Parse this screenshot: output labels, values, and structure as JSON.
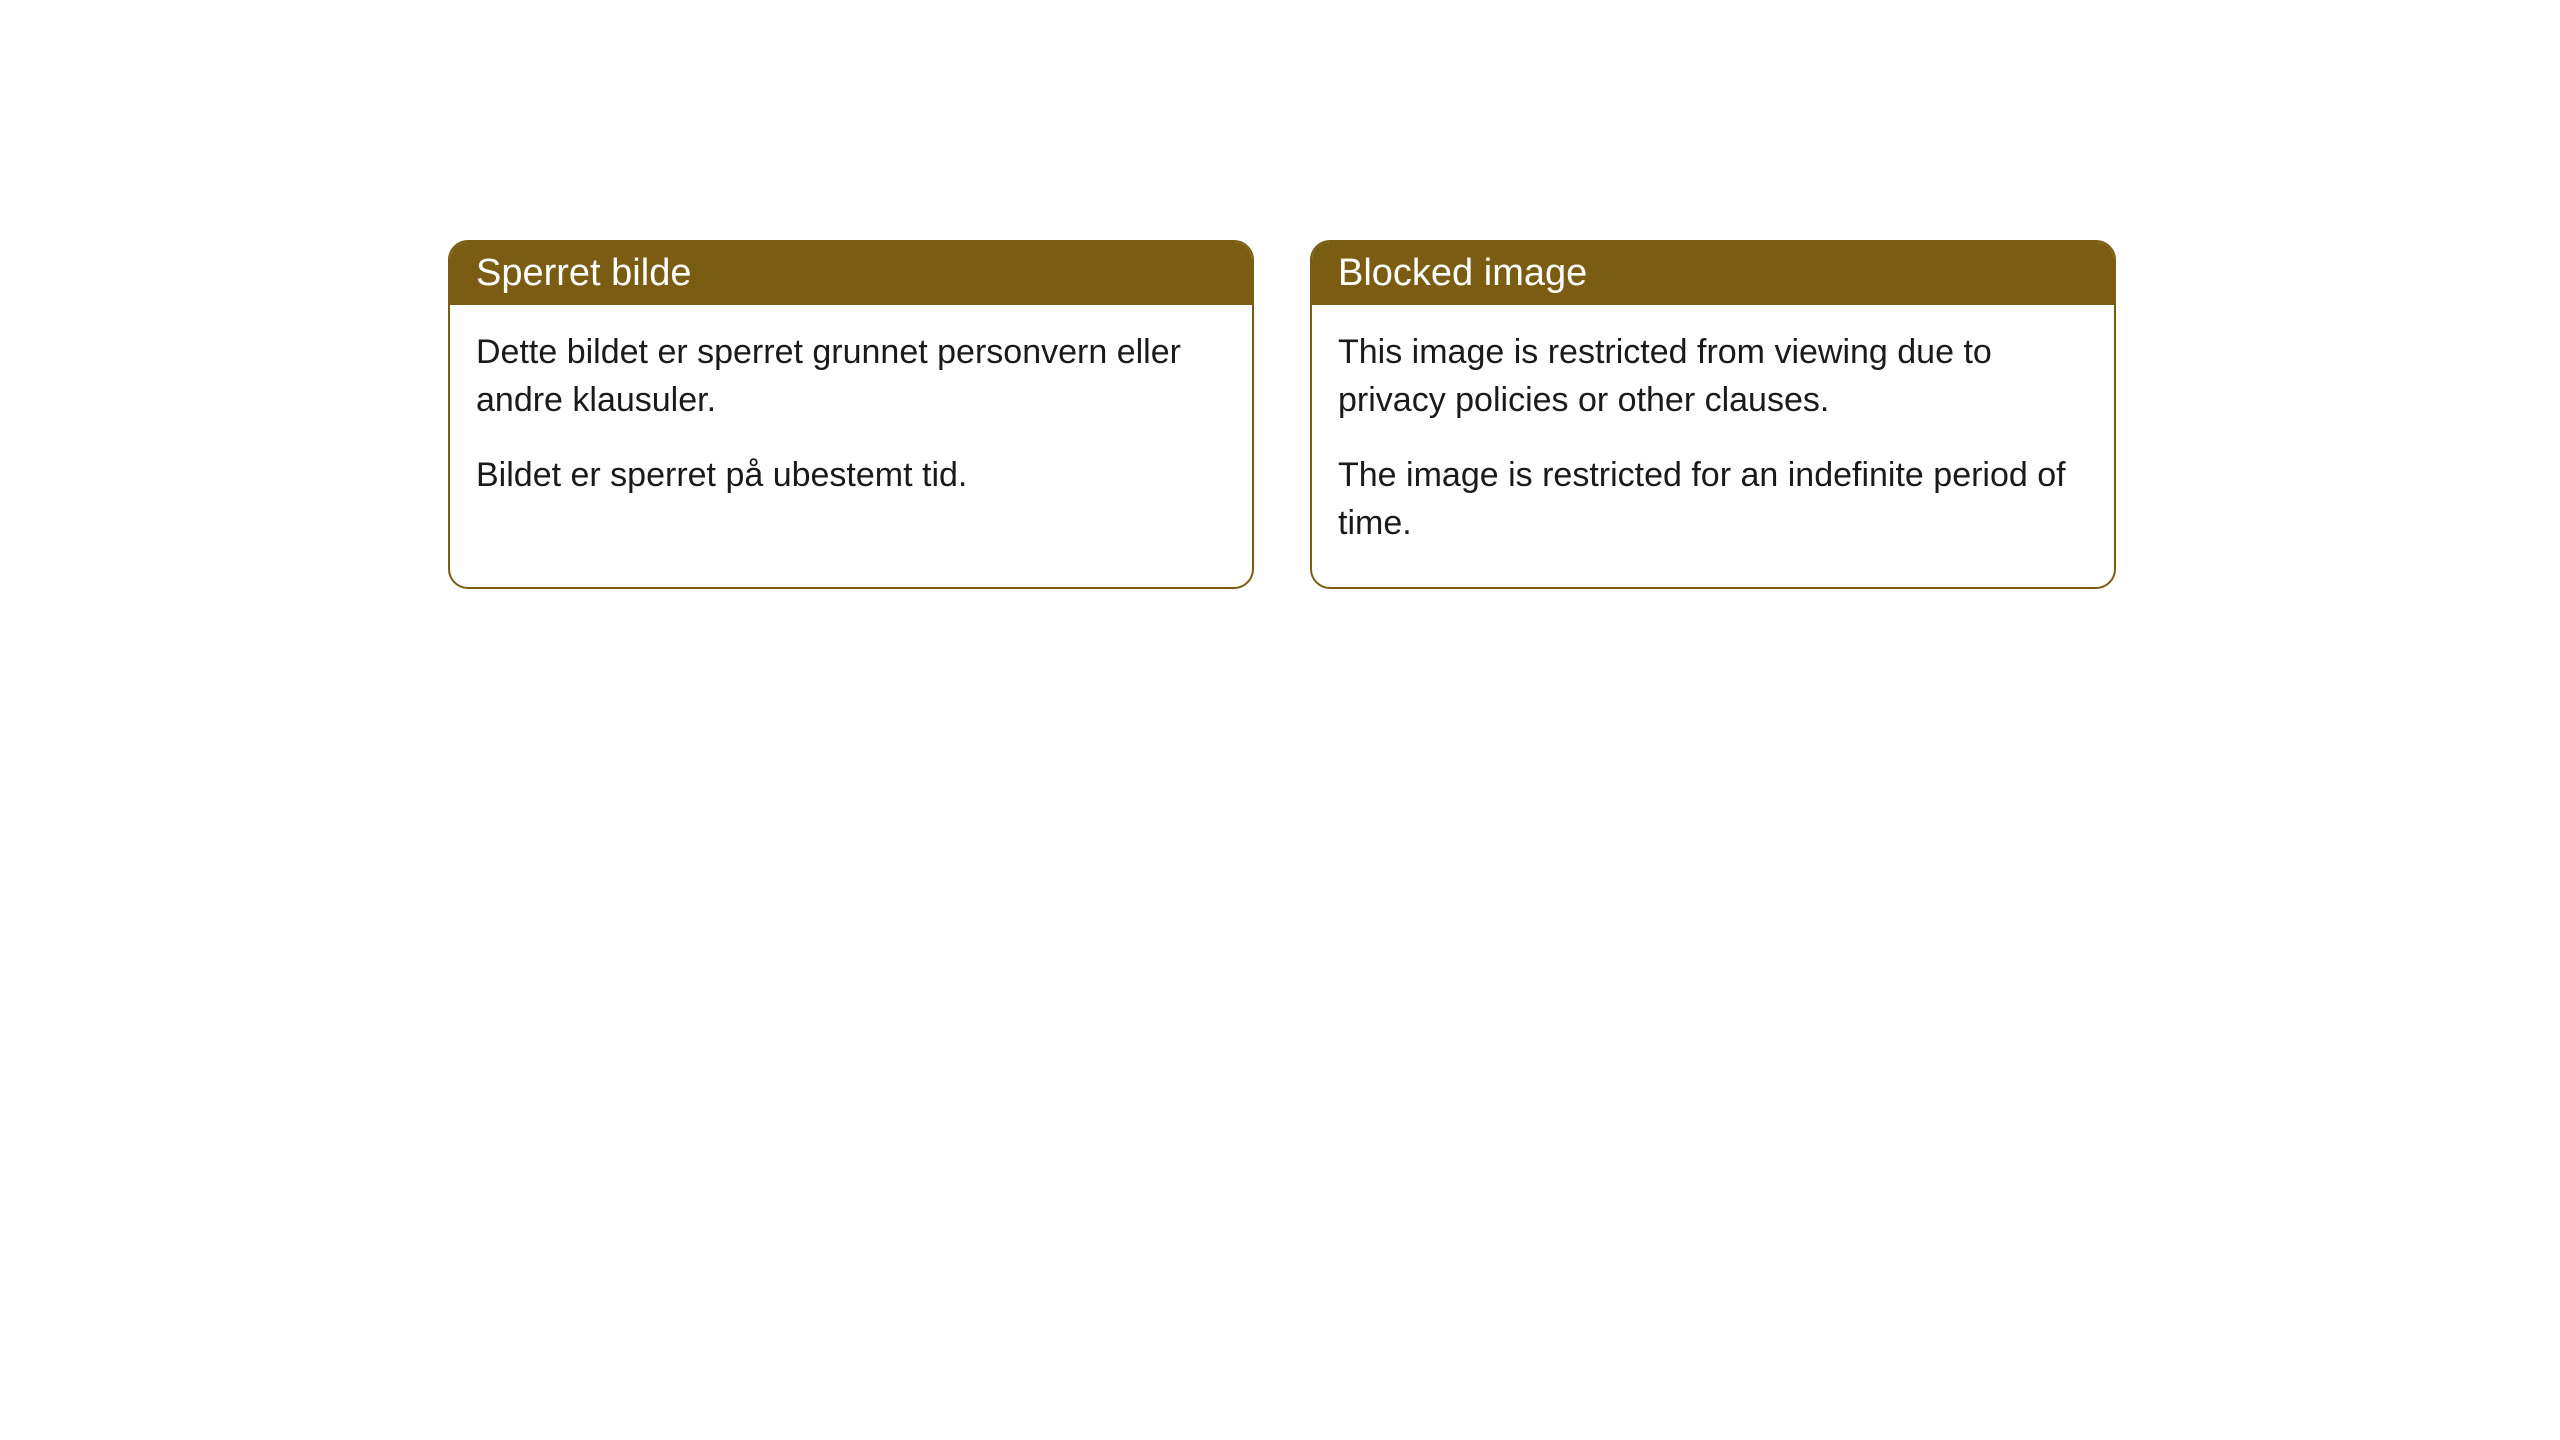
{
  "cards": [
    {
      "title": "Sperret bilde",
      "paragraph1": "Dette bildet er sperret grunnet personvern eller andre klausuler.",
      "paragraph2": "Bildet er sperret på ubestemt tid."
    },
    {
      "title": "Blocked image",
      "paragraph1": "This image is restricted from viewing due to privacy policies or other clauses.",
      "paragraph2": "The image is restricted for an indefinite period of time."
    }
  ],
  "styling": {
    "header_background": "#7a5c12",
    "header_text_color": "#ffffff",
    "border_color": "#7a5c12",
    "body_background": "#ffffff",
    "body_text_color": "#1a1a1a",
    "border_radius": 20,
    "title_fontsize": 38,
    "body_fontsize": 34
  }
}
